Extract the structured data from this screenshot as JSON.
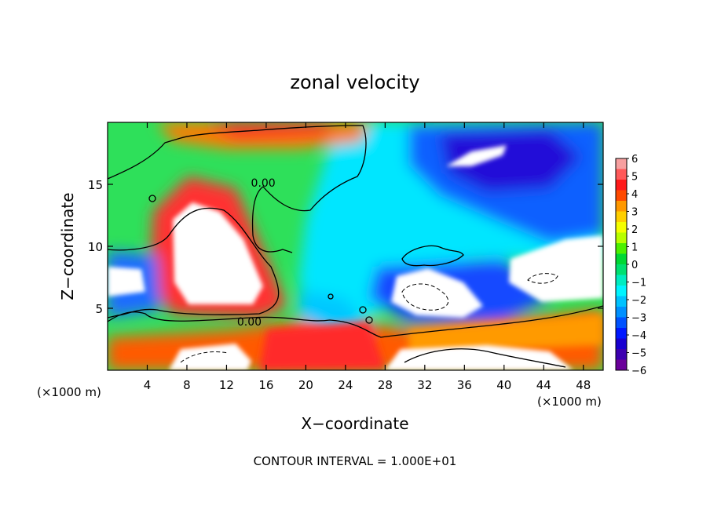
{
  "chart_data": {
    "type": "heatmap",
    "title": "zonal velocity",
    "xlabel": "X−coordinate",
    "ylabel": "Z−coordinate",
    "x_unit_left": "(×1000 m)",
    "x_unit_right": "(×1000 m)",
    "footer": "CONTOUR INTERVAL = 1.000E+01",
    "xlim": [
      0,
      50
    ],
    "ylim": [
      0,
      20
    ],
    "x_ticks": [
      4,
      8,
      12,
      16,
      20,
      24,
      28,
      32,
      36,
      40,
      44,
      48
    ],
    "y_ticks": [
      5,
      10,
      15
    ],
    "contour_labels": [
      {
        "text": "0.00",
        "x": 15.7,
        "y": 14.8
      },
      {
        "text": "0.00",
        "x": 14.3,
        "y": 3.6
      }
    ],
    "colorbar": {
      "min": -6,
      "max": 6,
      "ticks": [
        "6",
        "5",
        "4",
        "3",
        "2",
        "1",
        "0",
        "−1",
        "−2",
        "−3",
        "−4",
        "−5",
        "−6"
      ],
      "colors": [
        "#f7a0a0",
        "#ff5a5a",
        "#ff1a1a",
        "#ff4a00",
        "#ff9800",
        "#ffcf00",
        "#f5ff00",
        "#b8ff00",
        "#4cf000",
        "#00d834",
        "#00e070",
        "#00ecc0",
        "#00f4ff",
        "#00c2ff",
        "#0090ff",
        "#0052ff",
        "#0018ff",
        "#1800d0",
        "#3c00b0",
        "#6a009a"
      ]
    }
  }
}
